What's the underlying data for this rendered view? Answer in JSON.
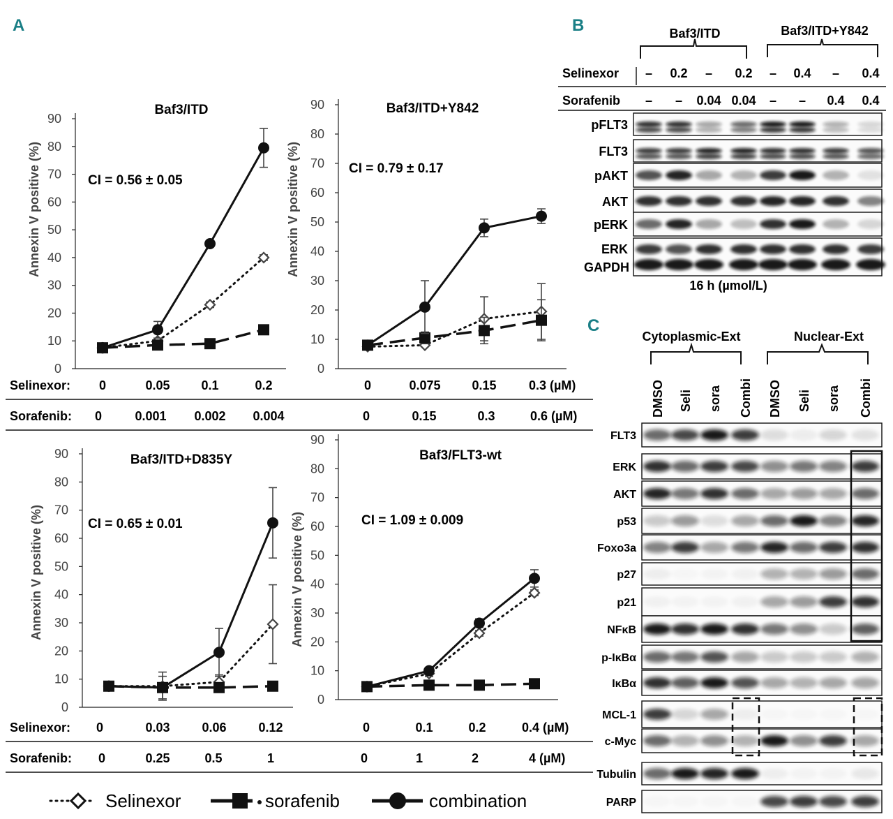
{
  "panels": {
    "A": "A",
    "B": "B",
    "C": "C"
  },
  "ylabel": "Annexin V positive (%)",
  "y_ticks": [
    "0",
    "10",
    "20",
    "30",
    "40",
    "50",
    "60",
    "70",
    "80",
    "90"
  ],
  "row1": {
    "selinexor_label": "Selinexor:",
    "sorafenib_label": "Sorafenib:",
    "left_sel": [
      "0",
      "0.05",
      "0.1",
      "0.2"
    ],
    "left_sor": [
      "0",
      "0.001",
      "0.002",
      "0.004"
    ],
    "right_sel": [
      "0",
      "0.075",
      "0.15",
      "0.3 (µM)"
    ],
    "right_sor": [
      "0",
      "0.15",
      "0.3",
      "0.6 (µM)"
    ]
  },
  "row2": {
    "selinexor_label": "Selinexor:",
    "sorafenib_label": "Sorafenib:",
    "left_sel": [
      "0",
      "0.03",
      "0.06",
      "0.12"
    ],
    "left_sor": [
      "0",
      "0.25",
      "0.5",
      "1"
    ],
    "right_sel": [
      "0",
      "0.1",
      "0.2",
      "0.4 (µM)"
    ],
    "right_sor": [
      "0",
      "1",
      "2",
      "4 (µM)"
    ]
  },
  "legend": {
    "selinexor": "Selinexor",
    "sorafenib": "sorafenib",
    "combination": "combination"
  },
  "colors": {
    "accent": "#1a7f86",
    "line": "#111111"
  },
  "chart_data": [
    {
      "type": "line",
      "title": "Baf3/ITD",
      "annotation": "CI = 0.56 ± 0.05",
      "ylabel": "Annexin V positive (%)",
      "ylim": [
        0,
        90
      ],
      "x": [
        "0",
        "0.05",
        "0.1",
        "0.2"
      ],
      "series": [
        {
          "name": "Selinexor",
          "values": [
            7.5,
            10,
            23,
            40
          ],
          "err": [
            0,
            1,
            1,
            1
          ]
        },
        {
          "name": "sorafenib",
          "values": [
            7.5,
            8.5,
            9,
            14
          ],
          "err": [
            0,
            0.5,
            0.5,
            1.5
          ]
        },
        {
          "name": "combination",
          "values": [
            7.5,
            14,
            45,
            79.5
          ],
          "err": [
            0,
            3,
            0,
            7
          ]
        }
      ]
    },
    {
      "type": "line",
      "title": "Baf3/ITD+Y842",
      "annotation": "CI = 0.79 ± 0.17",
      "ylabel": "Annexin V positive (%)",
      "ylim": [
        0,
        90
      ],
      "x": [
        "0",
        "0.075",
        "0.15",
        "0.3 (µM)"
      ],
      "series": [
        {
          "name": "Selinexor",
          "values": [
            7.5,
            8,
            17,
            19.5
          ],
          "err": [
            0,
            0.5,
            7.5,
            9.5
          ]
        },
        {
          "name": "sorafenib",
          "values": [
            8,
            10.5,
            13,
            16.5
          ],
          "err": [
            0,
            2,
            4.5,
            7
          ]
        },
        {
          "name": "combination",
          "values": [
            8,
            21,
            48,
            52
          ],
          "err": [
            0,
            9,
            3,
            2.5
          ]
        }
      ]
    },
    {
      "type": "line",
      "title": "Baf3/ITD+D835Y",
      "annotation": "CI = 0.65 ± 0.01",
      "ylabel": "Annexin V positive (%)",
      "ylim": [
        0,
        90
      ],
      "x": [
        "0",
        "0.03",
        "0.06",
        "0.12"
      ],
      "series": [
        {
          "name": "Selinexor",
          "values": [
            7.5,
            7.5,
            9,
            29.5
          ],
          "err": [
            0,
            5,
            2.5,
            14
          ]
        },
        {
          "name": "sorafenib",
          "values": [
            7.5,
            7,
            7,
            7.5
          ],
          "err": [
            0,
            1,
            1,
            0.5
          ]
        },
        {
          "name": "combination",
          "values": [
            7.5,
            7,
            19.5,
            65.5
          ],
          "err": [
            0,
            4,
            8.5,
            12.5
          ]
        }
      ]
    },
    {
      "type": "line",
      "title": "Baf3/FLT3-wt",
      "annotation": "CI = 1.09 ± 0.009",
      "ylabel": "Annexin V positive (%)",
      "ylim": [
        0,
        90
      ],
      "x": [
        "0",
        "0.1",
        "0.2",
        "0.4 (µM)"
      ],
      "series": [
        {
          "name": "Selinexor",
          "values": [
            4.5,
            9,
            23,
            37
          ],
          "err": [
            0,
            1,
            1,
            1
          ]
        },
        {
          "name": "sorafenib",
          "values": [
            4.5,
            5,
            5,
            5.5
          ],
          "err": [
            0,
            0.5,
            0.5,
            0.5
          ]
        },
        {
          "name": "combination",
          "values": [
            4.5,
            10,
            26.5,
            42
          ],
          "err": [
            0,
            1,
            1.5,
            3
          ]
        }
      ]
    }
  ],
  "blotB": {
    "group1": "Baf3/ITD",
    "group2": "Baf3/ITD+Y842",
    "selinexor_label": "Selinexor",
    "sorafenib_label": "Sorafenib",
    "selinexor": [
      "–",
      "0.2",
      "–",
      "0.2",
      "–",
      "0.4",
      "–",
      "0.4"
    ],
    "sorafenib": [
      "–",
      "–",
      "0.04",
      "0.04",
      "–",
      "–",
      "0.4",
      "0.4"
    ],
    "labels": [
      "pFLT3",
      "FLT3",
      "pAKT",
      "AKT",
      "pERK",
      "ERK",
      "GAPDH"
    ],
    "footer": "16 h (µmol/L)"
  },
  "blotC": {
    "group1": "Cytoplasmic-Ext",
    "group2": "Nuclear-Ext",
    "lanes": [
      "DMSO",
      "Seli",
      "sora",
      "Combi",
      "DMSO",
      "Seli",
      "sora",
      "Combi"
    ],
    "labels": [
      "FLT3",
      "ERK",
      "AKT",
      "p53",
      "Foxo3a",
      "p27",
      "p21",
      "NFκB",
      "p-IκBα",
      "IκBα",
      "MCL-1",
      "c-Myc",
      "Tubulin",
      "PARP"
    ]
  }
}
